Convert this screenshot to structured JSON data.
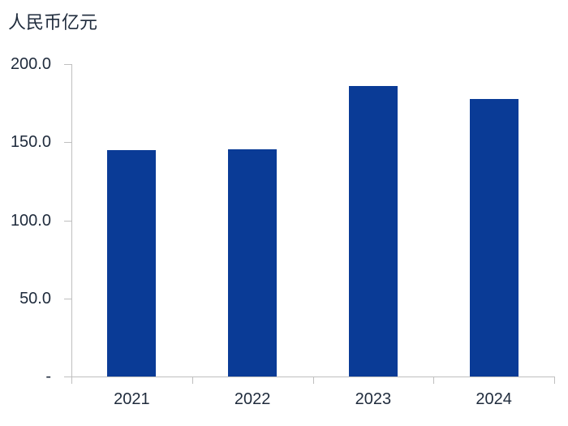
{
  "chart_data": {
    "type": "bar",
    "title": "人民币亿元",
    "categories": [
      "2021",
      "2022",
      "2023",
      "2024"
    ],
    "values": [
      145.0,
      145.5,
      186.0,
      177.8
    ],
    "ylim": [
      0,
      200
    ],
    "yticks": [
      {
        "value": 200,
        "label": "200.0"
      },
      {
        "value": 150,
        "label": "150.0"
      },
      {
        "value": 100,
        "label": "100.0"
      },
      {
        "value": 50,
        "label": "50.0"
      },
      {
        "value": 0,
        "label": "-"
      }
    ],
    "grid": false,
    "legend": "none",
    "xlabel": "",
    "ylabel": ""
  },
  "colors": {
    "bar": "#0A3B96",
    "text": "#1F2B3C",
    "axis": "#BFBFBF",
    "background": "#FFFFFF"
  }
}
